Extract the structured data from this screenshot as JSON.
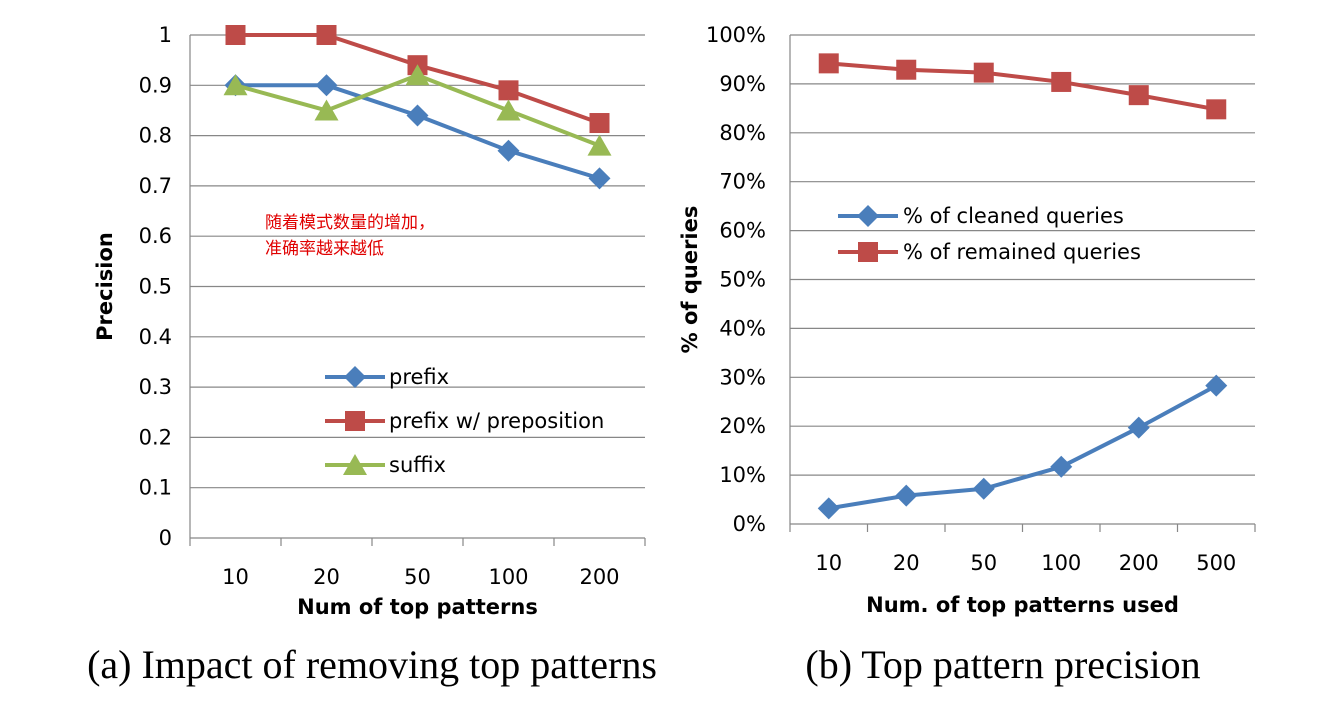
{
  "chart_data": [
    {
      "type": "line",
      "categories": [
        "10",
        "20",
        "50",
        "100",
        "200"
      ],
      "series": [
        {
          "name": "prefix",
          "values": [
            0.9,
            0.9,
            0.84,
            0.77,
            0.715
          ],
          "color": "#4a7ebb",
          "marker": "diamond"
        },
        {
          "name": "prefix w/ preposition",
          "values": [
            1.0,
            1.0,
            0.94,
            0.89,
            0.825
          ],
          "color": "#be4b48",
          "marker": "square"
        },
        {
          "name": "suffix",
          "values": [
            0.9,
            0.85,
            0.92,
            0.85,
            0.78
          ],
          "color": "#98b954",
          "marker": "triangle"
        }
      ],
      "ylim": [
        0,
        1
      ],
      "yticks": [
        "0",
        "0.1",
        "0.2",
        "0.3",
        "0.4",
        "0.5",
        "0.6",
        "0.7",
        "0.8",
        "0.9",
        "1"
      ],
      "xlabel": "Num of top patterns",
      "ylabel": "Precision",
      "annotation": [
        "随着模式数量的增加，",
        "准确率越来越低"
      ],
      "caption": "(a) Impact of removing top patterns",
      "grid": true,
      "legend": "center"
    },
    {
      "type": "line",
      "categories": [
        "10",
        "20",
        "50",
        "100",
        "200",
        "500"
      ],
      "series": [
        {
          "name": "% of cleaned queries",
          "values": [
            3.2,
            5.8,
            7.2,
            11.7,
            19.7,
            28.3
          ],
          "color": "#4a7ebb",
          "marker": "diamond"
        },
        {
          "name": "% of remained queries",
          "values": [
            94.2,
            92.9,
            92.3,
            90.4,
            87.7,
            84.8
          ],
          "color": "#be4b48",
          "marker": "square"
        }
      ],
      "ylim": [
        0,
        100
      ],
      "yticks": [
        "0%",
        "10%",
        "20%",
        "30%",
        "40%",
        "50%",
        "60%",
        "70%",
        "80%",
        "90%",
        "100%"
      ],
      "xlabel": "Num. of top patterns used",
      "ylabel": "% of queries",
      "caption": "(b) Top pattern precision",
      "grid": true,
      "legend": "upper-left"
    }
  ]
}
